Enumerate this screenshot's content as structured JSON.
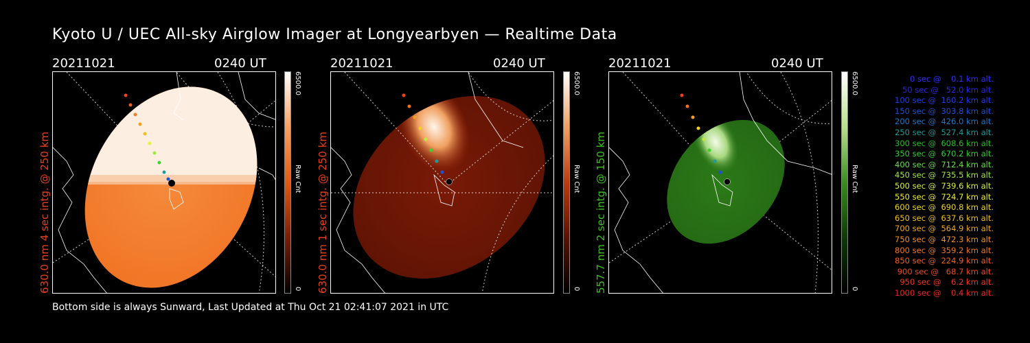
{
  "title": "Kyoto U / UEC All-sky Airglow Imager at Longyearbyen — Realtime Data",
  "footer": "Bottom side is always Sunward, Last Updated at Thu Oct 21 02:41:07 2021 in UTC",
  "colors": {
    "red_label": "#e8401c",
    "green_label": "#3cc021"
  },
  "panels": [
    {
      "date": "20211021",
      "time": "0240 UT",
      "ylabel": "630.0 nm 4 sec intg. @ 250 km",
      "ylabel_color": "#e8401c",
      "cbar_max": "6500.0",
      "cbar_min": "0",
      "cbar_label": "Raw Cnt",
      "colormap": "orange",
      "exposure_level": "saturated"
    },
    {
      "date": "20211021",
      "time": "0240 UT",
      "ylabel": "630.0 nm 1 sec intg. @ 250 km",
      "ylabel_color": "#e8401c",
      "cbar_max": "6500.0",
      "cbar_min": "0",
      "cbar_label": "Raw Cnt",
      "colormap": "red",
      "exposure_level": "normal"
    },
    {
      "date": "20211021",
      "time": "0240 UT",
      "ylabel": "557.7 nm 2 sec intg. @ 150 km",
      "ylabel_color": "#3cc021",
      "cbar_max": "6500.0",
      "cbar_min": "0",
      "cbar_label": "Raw Cnt",
      "colormap": "green",
      "exposure_level": "normal"
    }
  ],
  "legend": [
    {
      "text": "0 sec @    0.1 km alt.",
      "color": "#3030ff"
    },
    {
      "text": "50 sec @   52.0 km alt.",
      "color": "#2828e8"
    },
    {
      "text": "100 sec @  160.2 km alt.",
      "color": "#1e3cf0"
    },
    {
      "text": "150 sec @  303.8 km alt.",
      "color": "#1e50d8"
    },
    {
      "text": "200 sec @  426.0 km alt.",
      "color": "#1e78c8"
    },
    {
      "text": "250 sec @  527.4 km alt.",
      "color": "#1e9c9c"
    },
    {
      "text": "300 sec @  608.6 km alt.",
      "color": "#20c020"
    },
    {
      "text": "350 sec @  670.2 km alt.",
      "color": "#30d030"
    },
    {
      "text": "400 sec @  712.4 km alt.",
      "color": "#60e040"
    },
    {
      "text": "450 sec @  735.5 km alt.",
      "color": "#a0e840"
    },
    {
      "text": "500 sec @  739.6 km alt.",
      "color": "#d8f040"
    },
    {
      "text": "550 sec @  724.7 km alt.",
      "color": "#f0f030"
    },
    {
      "text": "600 sec @  690.8 km alt.",
      "color": "#f0d820"
    },
    {
      "text": "650 sec @  637.6 km alt.",
      "color": "#f0c020"
    },
    {
      "text": "700 sec @  564.9 km alt.",
      "color": "#f0a820"
    },
    {
      "text": "750 sec @  472.3 km alt.",
      "color": "#f09020"
    },
    {
      "text": "800 sec @  359.2 km alt.",
      "color": "#f07820"
    },
    {
      "text": "850 sec @  224.9 km alt.",
      "color": "#f06020"
    },
    {
      "text": "900 sec @   68.7 km alt.",
      "color": "#f04820"
    },
    {
      "text": "950 sec @    6.2 km alt.",
      "color": "#f03820"
    },
    {
      "text": "1000 sec @    0.4 km alt.",
      "color": "#f02820"
    }
  ]
}
